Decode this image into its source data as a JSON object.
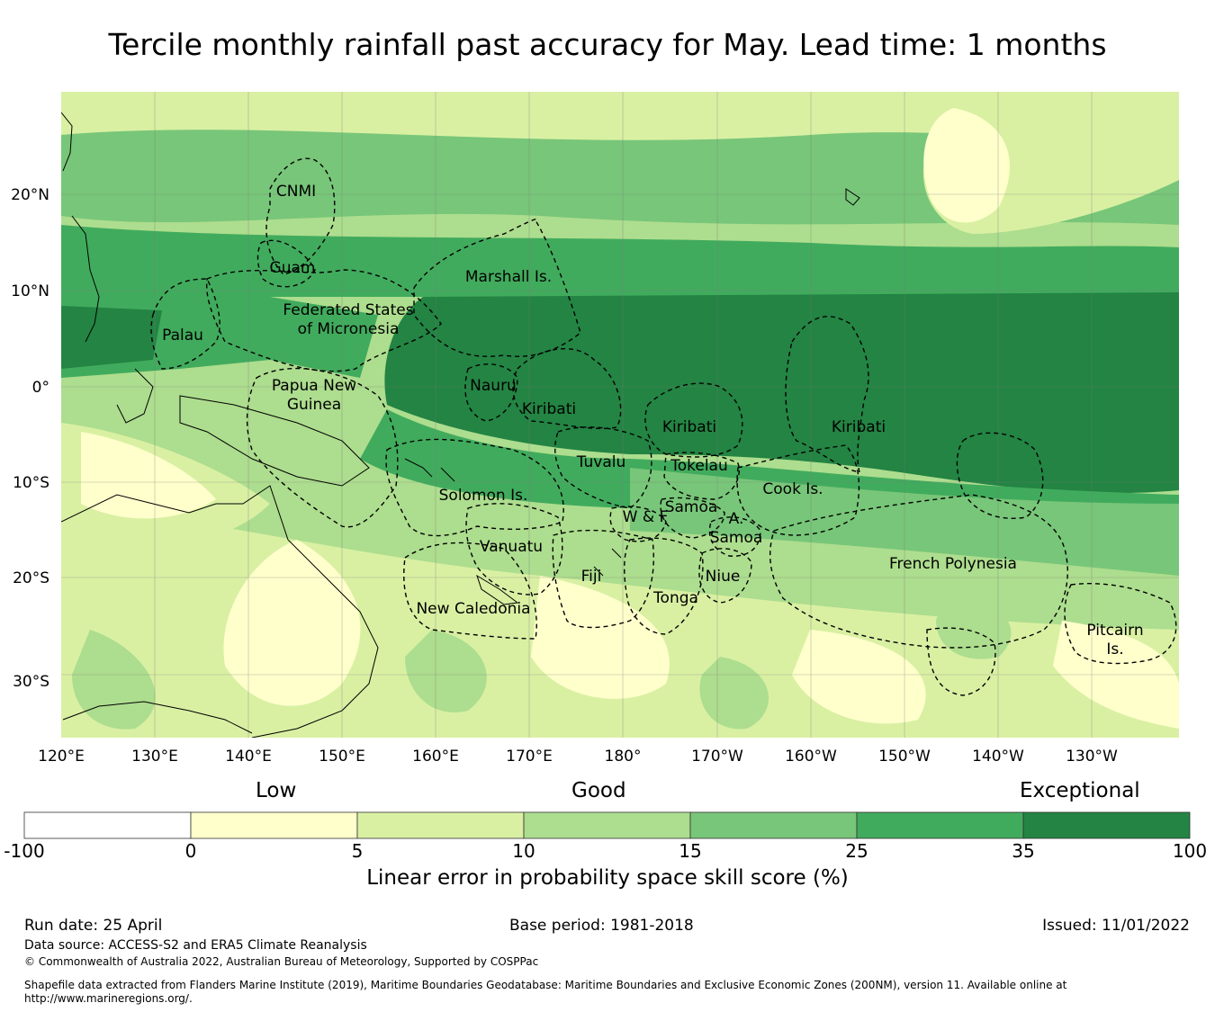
{
  "title": "Tercile monthly rainfall past accuracy for May. Lead time: 1 months",
  "map": {
    "lon_labels": [
      "120°E",
      "130°E",
      "140°E",
      "150°E",
      "160°E",
      "170°E",
      "180°",
      "170°W",
      "160°W",
      "150°W",
      "140°W",
      "130°W"
    ],
    "lat_labels": [
      "20°N",
      "10°N",
      "0°",
      "10°S",
      "20°S",
      "30°S"
    ],
    "regions": [
      {
        "name": "CNMI"
      },
      {
        "name": "Guam"
      },
      {
        "name": "Marshall Is."
      },
      {
        "name": "Federated States"
      },
      {
        "name": "of Micronesia"
      },
      {
        "name": "Palau"
      },
      {
        "name": "Papua New"
      },
      {
        "name": "Guinea"
      },
      {
        "name": "Nauru"
      },
      {
        "name": "Kiribati"
      },
      {
        "name": "Kiribati"
      },
      {
        "name": "Kiribati"
      },
      {
        "name": "Tuvalu"
      },
      {
        "name": "Tokelau"
      },
      {
        "name": "Cook Is."
      },
      {
        "name": "Solomon Is."
      },
      {
        "name": "Samoa"
      },
      {
        "name": "W & F"
      },
      {
        "name": "A."
      },
      {
        "name": "Samoa"
      },
      {
        "name": "Vanuatu"
      },
      {
        "name": "Fiji"
      },
      {
        "name": "Niue"
      },
      {
        "name": "Tonga"
      },
      {
        "name": "French Polynesia"
      },
      {
        "name": "New Caledonia"
      },
      {
        "name": "Pitcairn"
      },
      {
        "name": "Is."
      }
    ]
  },
  "colorbar": {
    "categories": [
      "Low",
      "Good",
      "Exceptional"
    ],
    "ticks": [
      "-100",
      "0",
      "5",
      "10",
      "15",
      "25",
      "35",
      "100"
    ],
    "colors": [
      "#ffffff",
      "#ffffcc",
      "#d9f0a3",
      "#addd8e",
      "#78c679",
      "#41ab5d",
      "#238443"
    ],
    "label": "Linear error in probability space skill score (%)"
  },
  "footer": {
    "run_date": "Run date: 25 April",
    "base_period": "Base period: 1981-2018",
    "issued": "Issued: 11/01/2022",
    "data_source": "Data source: ACCESS-S2 and ERA5 Climate Reanalysis",
    "copyright": "© Commonwealth of Australia 2022, Australian Bureau of Meteorology, Supported by COSPPac",
    "shapefile_line1": "Shapefile data extracted from Flanders Marine Institute (2019), Maritime Boundaries Geodatabase: Maritime Boundaries and Exclusive Economic Zones (200NM), version 11. Available online at",
    "shapefile_line2": "http://www.marineregions.org/."
  }
}
